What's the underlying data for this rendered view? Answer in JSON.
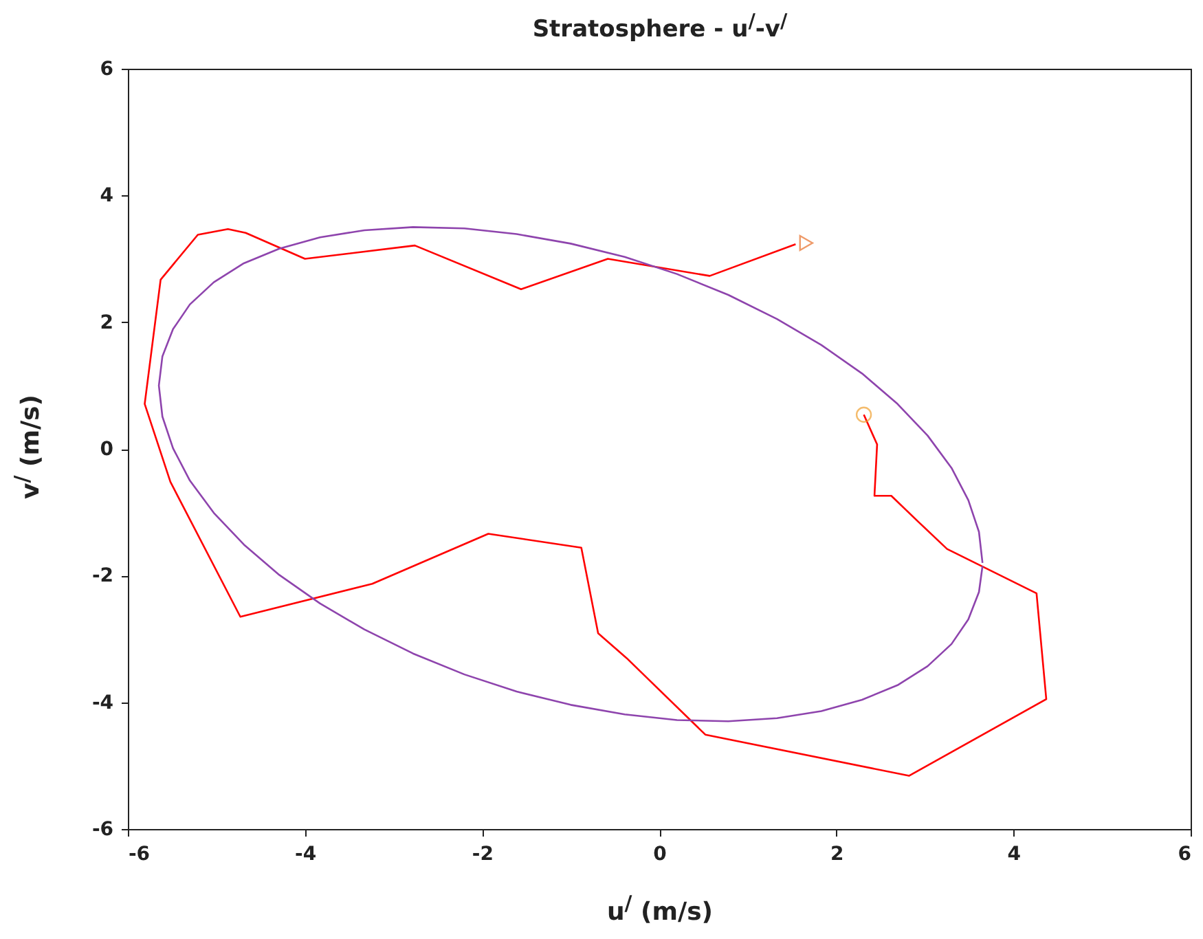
{
  "chart_data": {
    "type": "line",
    "title": "Stratosphere - u$^{/}$-v$^{/}$",
    "xlabel": "u$^{/}$ (m/s)",
    "ylabel": "v$^{/}$ (m/s)",
    "xlim": [
      -6,
      6
    ],
    "ylim": [
      -6,
      6
    ],
    "xticks": [
      -6,
      -4,
      -2,
      0,
      2,
      4,
      6
    ],
    "yticks": [
      -6,
      -4,
      -2,
      0,
      2,
      4,
      6
    ],
    "series": [
      {
        "color": "#ff0000",
        "x": [
          2.31,
          2.46,
          2.43,
          2.62,
          2.94,
          3.25,
          4.26,
          4.37,
          2.82,
          0.52,
          -0.37,
          -0.69,
          -0.88,
          -1.93,
          -3.24,
          -4.73,
          -5.52,
          -5.81,
          -5.63,
          -5.21,
          -4.87,
          -4.67,
          -4.0,
          -2.76,
          -1.56,
          -0.58,
          0.57,
          1.54
        ],
        "values": [
          0.54,
          0.07,
          -0.74,
          -0.74,
          -1.17,
          -1.58,
          -2.28,
          -3.95,
          -5.16,
          -4.51,
          -3.3,
          -2.91,
          -1.56,
          -1.34,
          -2.13,
          -2.65,
          -0.52,
          0.71,
          2.67,
          3.38,
          3.47,
          3.41,
          3.0,
          3.21,
          2.52,
          3.0,
          2.73,
          3.23
        ]
      },
      {
        "color": "#8e44ad",
        "x": [
          3.65,
          3.61,
          3.49,
          3.3,
          3.03,
          2.69,
          2.29,
          1.83,
          1.33,
          0.78,
          0.2,
          -0.39,
          -1.0,
          -1.61,
          -2.2,
          -2.78,
          -3.33,
          -3.83,
          -4.29,
          -4.69,
          -5.03,
          -5.3,
          -5.49,
          -5.61,
          -5.65,
          -5.61,
          -5.49,
          -5.3,
          -5.03,
          -4.69,
          -4.29,
          -3.83,
          -3.33,
          -2.78,
          -2.2,
          -1.61,
          -1.0,
          -0.39,
          0.2,
          0.78,
          1.33,
          1.83,
          2.29,
          2.69,
          3.03,
          3.3,
          3.49,
          3.61,
          3.65
        ],
        "values": [
          -1.8,
          -1.31,
          -0.81,
          -0.3,
          0.21,
          0.71,
          1.19,
          1.64,
          2.05,
          2.43,
          2.76,
          3.03,
          3.24,
          3.39,
          3.48,
          3.5,
          3.45,
          3.34,
          3.16,
          2.93,
          2.63,
          2.28,
          1.89,
          1.46,
          1.0,
          0.51,
          0.01,
          -0.5,
          -1.01,
          -1.51,
          -1.99,
          -2.44,
          -2.85,
          -3.23,
          -3.56,
          -3.83,
          -4.04,
          -4.19,
          -4.28,
          -4.3,
          -4.25,
          -4.14,
          -3.96,
          -3.73,
          -3.43,
          -3.08,
          -2.69,
          -2.26,
          -1.85
        ]
      },
      {
        "type": "scatter",
        "marker": "circle",
        "color": "#f0a030",
        "x": [
          2.31
        ],
        "values": [
          0.54
        ]
      },
      {
        "type": "scatter",
        "marker": "triangle",
        "color": "#e8702a",
        "x": [
          1.66
        ],
        "values": [
          3.25
        ]
      }
    ]
  }
}
